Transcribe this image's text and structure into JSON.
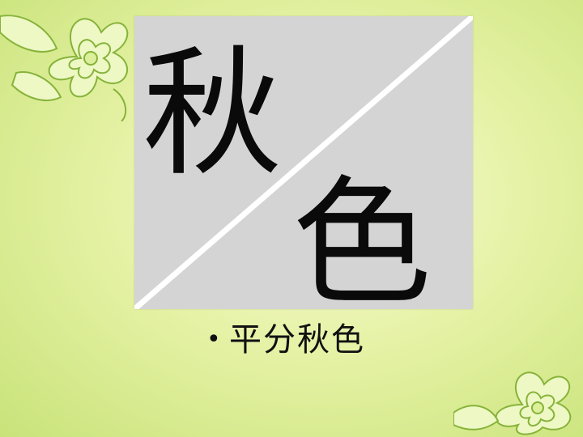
{
  "image": {
    "char_top": "秋",
    "char_bottom": "色"
  },
  "bullet": {
    "marker": "•",
    "text": "平分秋色"
  },
  "colors": {
    "card_background": "#d4d4d4",
    "diagonal_line": "#ffffff",
    "text": "#111111",
    "flower_stroke": "#7fae2e",
    "flower_fill": "#eaf6b8"
  }
}
